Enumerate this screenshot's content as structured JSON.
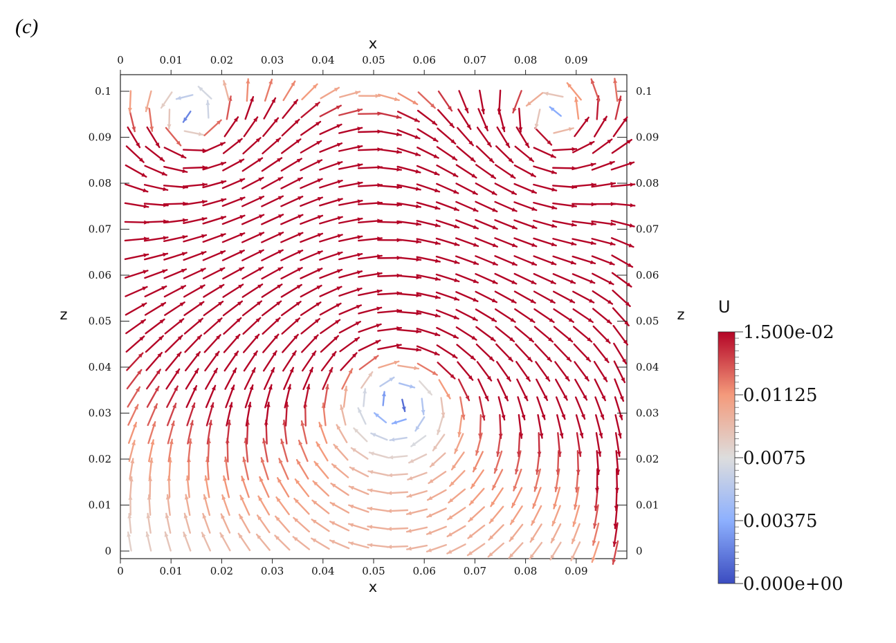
{
  "figure": {
    "panel_label": "(c)"
  },
  "chart_data": {
    "type": "quiver",
    "xlabel": "x",
    "ylabel": "z",
    "xlim": [
      0,
      0.1
    ],
    "ylim": [
      0,
      0.1
    ],
    "x_ticks": [
      "0",
      "0.01",
      "0.02",
      "0.03",
      "0.04",
      "0.05",
      "0.06",
      "0.07",
      "0.08",
      "0.09"
    ],
    "y_ticks": [
      "0",
      "0.01",
      "0.02",
      "0.03",
      "0.04",
      "0.05",
      "0.06",
      "0.07",
      "0.08",
      "0.09",
      "0.1"
    ],
    "grid": false,
    "field": {
      "description": "velocity vectors, colored by magnitude U",
      "primary_vortex_center": [
        0.055,
        0.042
      ],
      "secondary_vortex_center": [
        0.085,
        0.09
      ],
      "upper_left_vortex_center": [
        0.015,
        0.09
      ],
      "max_speed_region": "right wall, z 0.02-0.05"
    },
    "colorbar": {
      "title": "U",
      "range": [
        0,
        0.015
      ],
      "tick_labels": [
        "1.500e-02",
        "0.01125",
        "0.0075",
        "0.00375",
        "0.000e+00"
      ],
      "tick_values": [
        0.015,
        0.01125,
        0.0075,
        0.00375,
        0
      ],
      "colormap": [
        "#3b4cc0",
        "#8db0fe",
        "#dddddd",
        "#f49a7b",
        "#b40426"
      ]
    }
  }
}
